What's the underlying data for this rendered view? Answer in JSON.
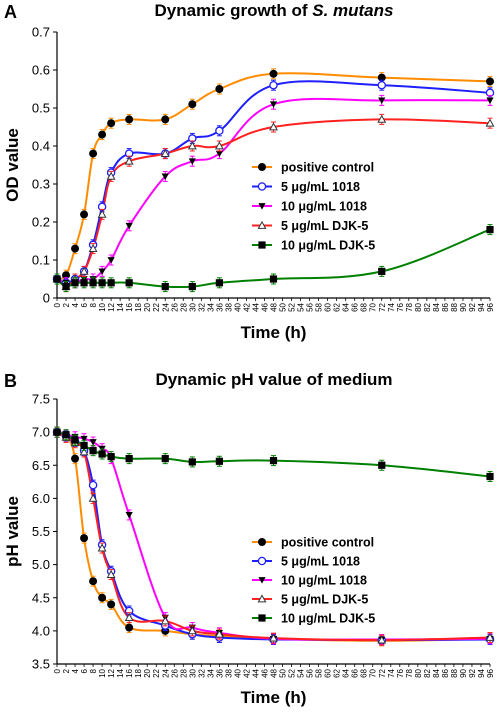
{
  "chart_data": [
    {
      "type": "line",
      "panel_label": "A",
      "title": "Dynamic growth of ",
      "title_italic": "S. mutans",
      "xlabel": "Time (h)",
      "ylabel": "OD value",
      "xlim": [
        0,
        96
      ],
      "ylim": [
        0,
        0.7
      ],
      "y_ticks": [
        "0",
        "0.1",
        "0.2",
        "0.3",
        "0.4",
        "0.5",
        "0.6",
        "0.7"
      ],
      "x_ticks": [
        "0",
        "2",
        "4",
        "6",
        "8",
        "10",
        "12",
        "14",
        "16",
        "18",
        "20",
        "22",
        "24",
        "26",
        "28",
        "30",
        "32",
        "34",
        "36",
        "38",
        "40",
        "42",
        "44",
        "46",
        "48",
        "50",
        "52",
        "54",
        "56",
        "58",
        "60",
        "62",
        "64",
        "66",
        "68",
        "70",
        "72",
        "74",
        "76",
        "78",
        "80",
        "82",
        "84",
        "86",
        "88",
        "90",
        "92",
        "94",
        "96"
      ],
      "legend_position": "center-right",
      "series": [
        {
          "name": "positive control",
          "color": "#FF8C00",
          "marker": "circle",
          "x": [
            0,
            2,
            4,
            6,
            8,
            10,
            12,
            16,
            24,
            30,
            36,
            48,
            72,
            96
          ],
          "y": [
            0.05,
            0.06,
            0.13,
            0.22,
            0.38,
            0.43,
            0.46,
            0.47,
            0.47,
            0.51,
            0.55,
            0.59,
            0.58,
            0.57
          ]
        },
        {
          "name": "5 μg/mL 1018",
          "color": "#1E1EFF",
          "marker": "circle-open",
          "x": [
            0,
            2,
            4,
            6,
            8,
            10,
            12,
            16,
            24,
            30,
            36,
            48,
            72,
            96
          ],
          "y": [
            0.05,
            0.04,
            0.05,
            0.07,
            0.14,
            0.24,
            0.33,
            0.38,
            0.38,
            0.42,
            0.44,
            0.56,
            0.56,
            0.54
          ]
        },
        {
          "name": "10 μg/mL 1018",
          "color": "#FF00FF",
          "marker": "triangle-down",
          "x": [
            0,
            2,
            4,
            6,
            8,
            10,
            12,
            16,
            24,
            30,
            36,
            48,
            72,
            96
          ],
          "y": [
            0.05,
            0.04,
            0.04,
            0.05,
            0.05,
            0.07,
            0.1,
            0.19,
            0.32,
            0.36,
            0.38,
            0.51,
            0.52,
            0.52
          ]
        },
        {
          "name": "5 μg/mL DJK-5",
          "color": "#FF2020",
          "marker": "triangle-open",
          "x": [
            0,
            2,
            4,
            6,
            8,
            10,
            12,
            16,
            24,
            30,
            36,
            48,
            72,
            96
          ],
          "y": [
            0.05,
            0.03,
            0.05,
            0.07,
            0.13,
            0.22,
            0.32,
            0.36,
            0.38,
            0.4,
            0.4,
            0.45,
            0.47,
            0.46
          ]
        },
        {
          "name": "10 μg/mL DJK-5",
          "color": "#008000",
          "marker": "square",
          "x": [
            0,
            2,
            4,
            6,
            8,
            10,
            12,
            16,
            24,
            30,
            36,
            48,
            72,
            96
          ],
          "y": [
            0.05,
            0.03,
            0.04,
            0.04,
            0.04,
            0.04,
            0.04,
            0.04,
            0.03,
            0.03,
            0.04,
            0.05,
            0.07,
            0.18
          ]
        }
      ]
    },
    {
      "type": "line",
      "panel_label": "B",
      "title": "Dynamic pH value of medium",
      "xlabel": "Time (h)",
      "ylabel": "pH value",
      "xlim": [
        0,
        96
      ],
      "ylim": [
        3.5,
        7.5
      ],
      "y_ticks": [
        "3.5",
        "4.0",
        "4.5",
        "5.0",
        "5.5",
        "6.0",
        "6.5",
        "7.0",
        "7.5"
      ],
      "x_ticks": [
        "0",
        "2",
        "4",
        "6",
        "8",
        "10",
        "12",
        "14",
        "16",
        "18",
        "20",
        "22",
        "24",
        "26",
        "28",
        "30",
        "32",
        "34",
        "36",
        "38",
        "40",
        "42",
        "44",
        "46",
        "48",
        "50",
        "52",
        "54",
        "56",
        "58",
        "60",
        "62",
        "64",
        "66",
        "68",
        "70",
        "72",
        "74",
        "76",
        "78",
        "80",
        "82",
        "84",
        "86",
        "88",
        "90",
        "92",
        "94",
        "96"
      ],
      "legend_position": "bottom-right",
      "series": [
        {
          "name": "positive control",
          "color": "#FF8C00",
          "marker": "circle",
          "x": [
            0,
            2,
            4,
            6,
            8,
            10,
            12,
            16,
            24,
            30,
            36,
            48,
            72,
            96
          ],
          "y": [
            7.0,
            6.94,
            6.6,
            5.4,
            4.75,
            4.5,
            4.4,
            4.05,
            4.0,
            3.95,
            3.92,
            3.88,
            3.85,
            3.88
          ]
        },
        {
          "name": "5 μg/mL 1018",
          "color": "#1E1EFF",
          "marker": "circle-open",
          "x": [
            0,
            2,
            4,
            6,
            8,
            10,
            12,
            16,
            24,
            30,
            36,
            48,
            72,
            96
          ],
          "y": [
            7.0,
            6.94,
            6.86,
            6.72,
            6.2,
            5.3,
            4.9,
            4.3,
            4.08,
            3.95,
            3.9,
            3.87,
            3.86,
            3.87
          ]
        },
        {
          "name": "10 μg/mL 1018",
          "color": "#FF00FF",
          "marker": "triangle-down",
          "x": [
            0,
            2,
            4,
            6,
            8,
            10,
            12,
            16,
            24,
            30,
            36,
            48,
            72,
            96
          ],
          "y": [
            7.0,
            6.96,
            6.93,
            6.9,
            6.85,
            6.75,
            6.6,
            5.75,
            4.2,
            4.05,
            3.97,
            3.88,
            3.87,
            3.88
          ]
        },
        {
          "name": "5 μg/mL DJK-5",
          "color": "#FF2020",
          "marker": "triangle-open",
          "x": [
            0,
            2,
            4,
            6,
            8,
            10,
            12,
            16,
            24,
            30,
            36,
            48,
            72,
            96
          ],
          "y": [
            7.0,
            6.92,
            6.84,
            6.7,
            6.0,
            5.25,
            4.85,
            4.2,
            4.15,
            4.0,
            3.95,
            3.89,
            3.86,
            3.9
          ]
        },
        {
          "name": "10 μg/mL DJK-5",
          "color": "#008000",
          "marker": "square",
          "x": [
            0,
            2,
            4,
            6,
            8,
            10,
            12,
            16,
            24,
            30,
            36,
            48,
            72,
            96
          ],
          "y": [
            7.0,
            6.96,
            6.88,
            6.8,
            6.72,
            6.67,
            6.63,
            6.6,
            6.6,
            6.55,
            6.56,
            6.57,
            6.5,
            6.33
          ]
        }
      ]
    }
  ]
}
